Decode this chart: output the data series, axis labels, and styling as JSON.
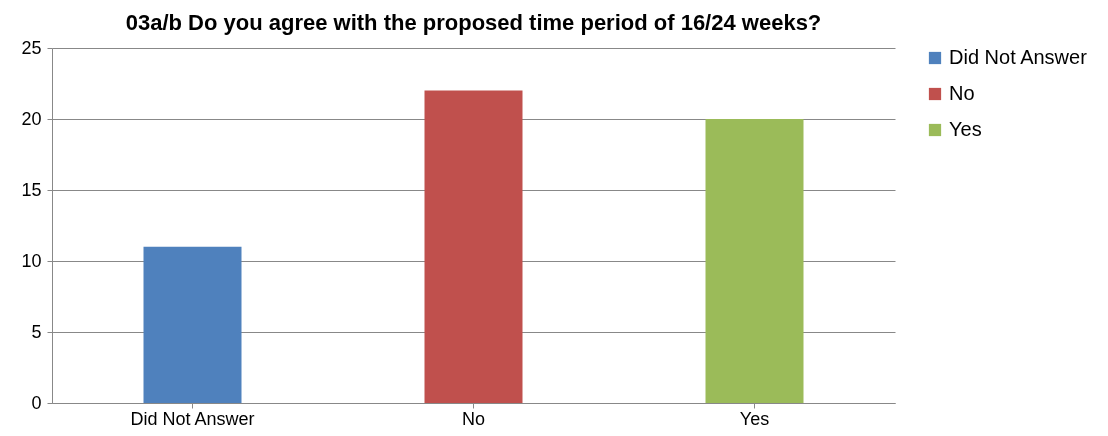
{
  "chart_data": {
    "type": "bar",
    "title": "03a/b Do you agree with the proposed time period of 16/24 weeks?",
    "categories": [
      "Did Not Answer",
      "No",
      "Yes"
    ],
    "stacked": true,
    "series": [
      {
        "name": "Did Not Answer",
        "color": "#4f81bd",
        "values": [
          11,
          null,
          null
        ]
      },
      {
        "name": "No",
        "color": "#c0504d",
        "values": [
          null,
          22,
          null
        ]
      },
      {
        "name": "Yes",
        "color": "#9bbb59",
        "values": [
          null,
          null,
          20
        ]
      }
    ],
    "ylim": [
      0,
      25
    ],
    "yticks": [
      0,
      5,
      10,
      15,
      20,
      25
    ],
    "grid": "y",
    "legend": "right"
  }
}
